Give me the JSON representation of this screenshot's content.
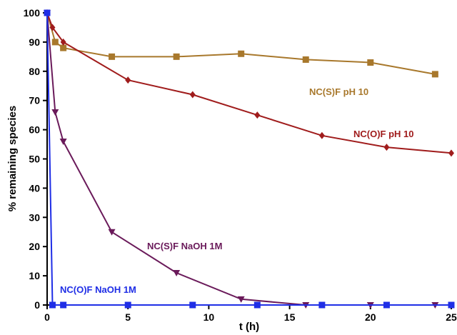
{
  "chart_data": {
    "type": "line",
    "title": "",
    "xlabel": "t (h)",
    "ylabel": "% remaining species",
    "xlim": [
      0,
      25
    ],
    "ylim": [
      0,
      100
    ],
    "xticks": [
      0,
      5,
      10,
      15,
      20,
      25
    ],
    "yticks": [
      0,
      10,
      20,
      30,
      40,
      50,
      60,
      70,
      80,
      90,
      100
    ],
    "grid": false,
    "legend": "inline labels",
    "series": [
      {
        "name": "NC(S)F pH 10",
        "color": "#a8782c",
        "marker": "square",
        "x": [
          0,
          0.5,
          1,
          4,
          8,
          12,
          16,
          20,
          24
        ],
        "y": [
          100,
          90,
          88,
          85,
          85,
          86,
          84,
          83,
          79
        ]
      },
      {
        "name": "NC(O)F pH 10",
        "color": "#a01c1c",
        "marker": "diamond",
        "x": [
          0,
          0.33,
          1,
          5,
          9,
          13,
          17,
          21,
          25
        ],
        "y": [
          100,
          95,
          90,
          77,
          72,
          65,
          58,
          54,
          52
        ]
      },
      {
        "name": "NC(S)F NaOH 1M",
        "color": "#6a1a5a",
        "marker": "triangle-down",
        "x": [
          0,
          0.5,
          1,
          4,
          8,
          12,
          16,
          20,
          24
        ],
        "y": [
          100,
          66,
          56,
          25,
          11,
          2,
          0,
          0,
          0
        ]
      },
      {
        "name": "NC(O)F NaOH 1M",
        "color": "#1f2ee6",
        "marker": "square",
        "x": [
          0,
          0.33,
          1,
          5,
          9,
          13,
          17,
          21,
          25
        ],
        "y": [
          100,
          0,
          0,
          0,
          0,
          0,
          0,
          0,
          0
        ]
      }
    ]
  }
}
